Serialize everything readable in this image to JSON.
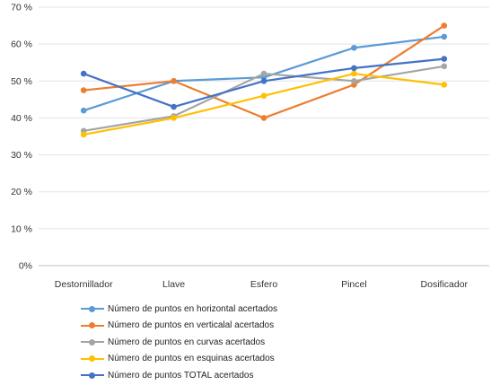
{
  "chart_data": {
    "type": "line",
    "categories": [
      "Destornillador",
      "Llave",
      "Esfero",
      "Pincel",
      "Dosificador"
    ],
    "y_ticks": [
      "70 %",
      "60 %",
      "50 %",
      "40 %",
      "30 %",
      "20 %",
      "10 %",
      "0%"
    ],
    "ylim": [
      0,
      70
    ],
    "grid": "horizontal",
    "legend_position": "bottom",
    "series": [
      {
        "name": "Número de puntos en horizontal acertados",
        "color": "#5b9bd5",
        "values": [
          42,
          50,
          51,
          59,
          62
        ]
      },
      {
        "name": "Número de puntos en verticalal acertados",
        "color": "#ed7d31",
        "values": [
          47.5,
          50,
          40,
          49,
          65
        ]
      },
      {
        "name": "Número de puntos en curvas acertados",
        "color": "#a5a5a5",
        "values": [
          36.5,
          40.5,
          52,
          50,
          54
        ]
      },
      {
        "name": "Número de puntos en esquinas acertados",
        "color": "#ffc000",
        "values": [
          35.5,
          40,
          46,
          52,
          49
        ]
      },
      {
        "name": "Número de puntos TOTAL acertados",
        "color": "#4472c4",
        "values": [
          52,
          43,
          50,
          53.5,
          56
        ]
      }
    ]
  }
}
